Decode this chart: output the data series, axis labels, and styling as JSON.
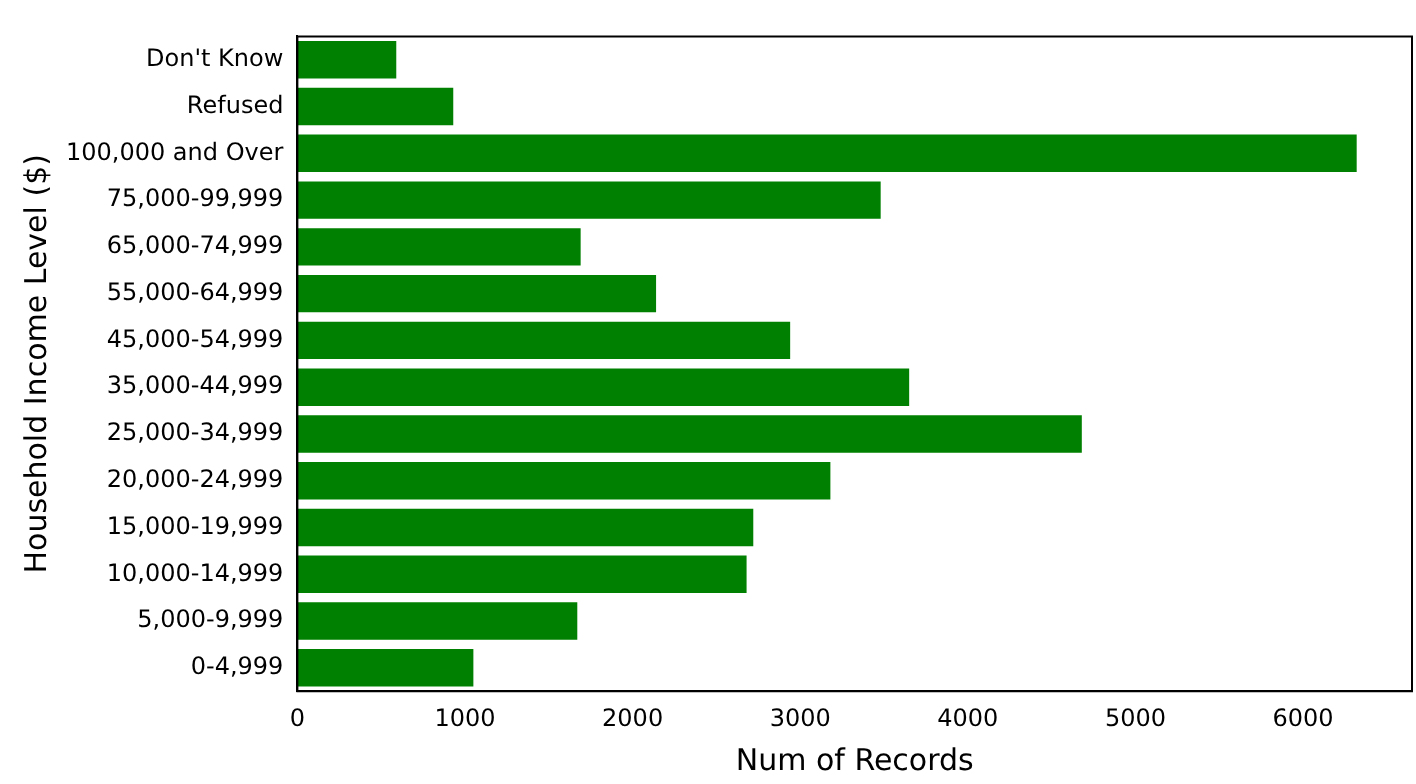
{
  "chart_data": {
    "type": "bar",
    "orientation": "horizontal",
    "xlabel": "Num of Records",
    "ylabel": "Household Income Level ($)",
    "categories": [
      "Don't Know",
      "Refused",
      "100,000 and Over",
      "75,000-99,999",
      "65,000-74,999",
      "55,000-64,999",
      "45,000-54,999",
      "35,000-44,999",
      "25,000-34,999",
      "20,000-24,999",
      "15,000-19,999",
      "10,000-14,999",
      "5,000-9,999",
      "0-4,999"
    ],
    "values": [
      590,
      930,
      6320,
      3480,
      1690,
      2140,
      2940,
      3650,
      4680,
      3180,
      2720,
      2680,
      1670,
      1050
    ],
    "color": "#008000",
    "xlim": [
      0,
      6650
    ],
    "xticks": [
      0,
      1000,
      2000,
      3000,
      4000,
      5000,
      6000
    ],
    "grid": false,
    "legend": false
  }
}
